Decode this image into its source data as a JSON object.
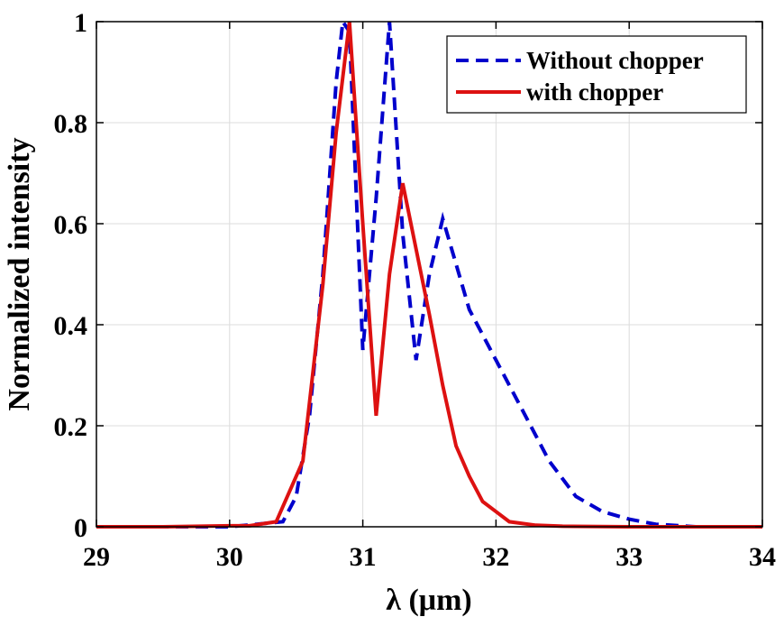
{
  "chart_data": {
    "type": "line",
    "xlabel": "λ (μm)",
    "ylabel": "Normalized  intensity",
    "xlim": [
      29,
      34
    ],
    "ylim": [
      0,
      1
    ],
    "xticks": [
      "29",
      "30",
      "31",
      "32",
      "33",
      "34"
    ],
    "yticks": [
      "0",
      "0.2",
      "0.4",
      "0.6",
      "0.8",
      "1"
    ],
    "grid": true,
    "legend_position": "top-right",
    "series": [
      {
        "name": "Without chopper",
        "style": "dashed",
        "color": "#0000cc",
        "x": [
          29.0,
          29.5,
          30.0,
          30.2,
          30.4,
          30.5,
          30.6,
          30.7,
          30.8,
          30.85,
          30.9,
          31.0,
          31.1,
          31.2,
          31.3,
          31.4,
          31.5,
          31.6,
          31.7,
          31.8,
          32.0,
          32.2,
          32.4,
          32.6,
          32.8,
          33.0,
          33.2,
          33.5,
          34.0
        ],
        "y": [
          0.0,
          0.0,
          0.0,
          0.005,
          0.01,
          0.06,
          0.22,
          0.5,
          0.88,
          1.0,
          0.98,
          0.35,
          0.65,
          1.0,
          0.58,
          0.33,
          0.5,
          0.61,
          0.52,
          0.43,
          0.33,
          0.23,
          0.13,
          0.06,
          0.03,
          0.015,
          0.005,
          0.0,
          0.0
        ]
      },
      {
        "name": "with chopper",
        "style": "solid",
        "color": "#dd1111",
        "x": [
          29.0,
          29.5,
          30.0,
          30.15,
          30.35,
          30.55,
          30.7,
          30.8,
          30.9,
          31.0,
          31.1,
          31.2,
          31.3,
          31.4,
          31.5,
          31.6,
          31.7,
          31.8,
          31.9,
          32.0,
          32.1,
          32.3,
          32.5,
          33.0,
          34.0
        ],
        "y": [
          0.0,
          0.0,
          0.002,
          0.002,
          0.01,
          0.13,
          0.48,
          0.78,
          1.0,
          0.6,
          0.22,
          0.5,
          0.68,
          0.55,
          0.42,
          0.28,
          0.16,
          0.1,
          0.05,
          0.03,
          0.01,
          0.003,
          0.001,
          0.0,
          0.0
        ]
      }
    ]
  }
}
